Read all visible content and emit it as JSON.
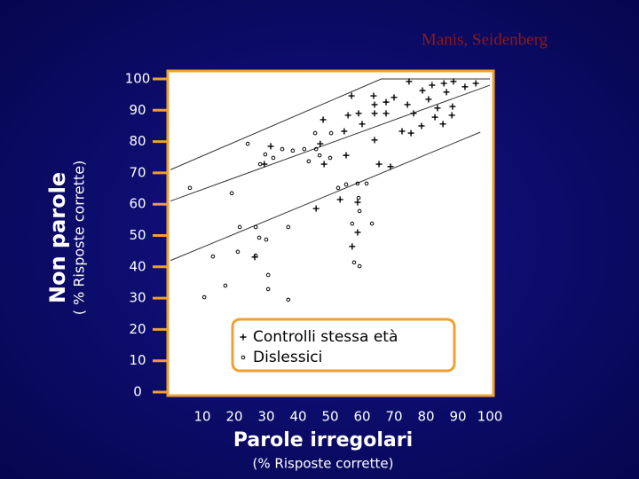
{
  "chart_data": {
    "type": "scatter",
    "annotation": "Manis, Seidenberg",
    "y_label": "Non parole",
    "y_sublabel": "( % Risposte corrette)",
    "x_label": "Parole irregolari",
    "x_sublabel": "(% Risposte corrette)",
    "xlim": [
      0,
      100
    ],
    "ylim": [
      0,
      100
    ],
    "xticks": [
      10,
      20,
      30,
      40,
      50,
      60,
      70,
      80,
      90,
      100
    ],
    "yticks": [
      0,
      10,
      20,
      30,
      40,
      50,
      60,
      70,
      80,
      90,
      100
    ],
    "reference_lines": [
      {
        "x": [
          0,
          66,
          100
        ],
        "y": [
          71,
          100,
          100
        ]
      },
      {
        "x": [
          0,
          100
        ],
        "y": [
          61,
          98
        ]
      },
      {
        "x": [
          0,
          97
        ],
        "y": [
          42,
          83
        ]
      }
    ],
    "series": [
      {
        "name": "Controlli stessa età",
        "color": "#000000",
        "marker": "plus",
        "x": [
          56.7,
          63.6,
          47.8,
          55.6,
          58.9,
          63.9,
          67.5,
          63.9,
          67.5,
          70.0,
          74.7,
          78.9,
          81.9,
          85.6,
          88.6,
          92.2,
          95.6,
          86.4,
          80.8,
          83.6,
          88.3,
          76.1,
          74.2,
          82.8,
          85.3,
          88.1,
          78.6,
          72.5,
          75.3,
          63.9,
          60.0,
          54.4,
          55.0,
          65.3,
          68.9,
          46.9,
          48.1,
          31.4,
          29.4,
          53.1,
          58.6,
          45.6,
          58.6,
          56.9,
          26.4
        ],
        "values": [
          94.6,
          94.6,
          87.0,
          88.4,
          89.0,
          91.8,
          92.6,
          89.0,
          89.0,
          94.1,
          99.2,
          96.3,
          98.0,
          98.6,
          99.2,
          97.5,
          98.6,
          95.8,
          93.5,
          90.7,
          91.2,
          89.0,
          91.8,
          87.8,
          85.6,
          88.4,
          85.0,
          83.3,
          82.7,
          80.5,
          85.6,
          83.3,
          75.6,
          72.8,
          72.0,
          79.3,
          72.8,
          78.5,
          72.8,
          61.5,
          60.6,
          58.6,
          51.0,
          46.5,
          43.1
        ]
      },
      {
        "name": "Dislessici",
        "color": "#000000",
        "marker": "circle",
        "x": [
          6.1,
          19.2,
          24.2,
          28.1,
          29.7,
          32.2,
          35.0,
          38.3,
          41.9,
          45.6,
          46.7,
          50.0,
          45.3,
          50.3,
          43.3,
          52.5,
          55.0,
          58.6,
          61.4,
          21.7,
          26.7,
          27.8,
          30.0,
          36.9,
          58.9,
          59.2,
          56.9,
          63.1,
          57.5,
          59.2,
          30.6,
          30.6,
          36.9,
          17.2,
          10.6,
          13.3,
          21.1,
          26.7
        ],
        "values": [
          65.2,
          63.5,
          79.3,
          72.8,
          75.9,
          74.8,
          77.6,
          77.1,
          77.6,
          77.6,
          75.6,
          74.8,
          82.7,
          82.7,
          73.7,
          65.2,
          66.3,
          66.6,
          66.6,
          52.7,
          52.7,
          49.3,
          48.7,
          52.7,
          62.0,
          57.8,
          53.8,
          53.8,
          41.4,
          40.2,
          37.4,
          32.9,
          29.5,
          34.0,
          30.3,
          43.3,
          44.8,
          43.6
        ]
      }
    ]
  }
}
